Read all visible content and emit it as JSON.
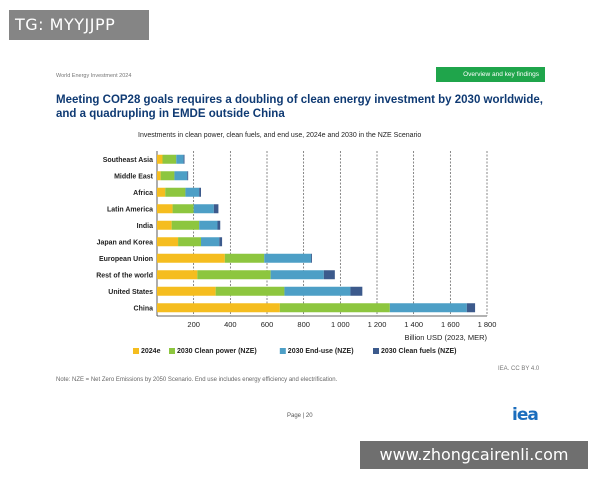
{
  "watermark_top": "TG: MYYJJPP",
  "watermark_bottom": "www.zhongcairenli.com",
  "report_name": "World Energy Investment 2024",
  "section_tag": "Overview and key findings",
  "headline": "Meeting COP28 goals requires a doubling of clean energy investment by 2030 worldwide, and a quadrupling in EMDE outside China",
  "note": "Note: NZE = Net Zero Emissions by 2050 Scenario. End use includes energy efficiency and electrification.",
  "source": "IEA. CC BY 4.0",
  "page_number": "Page | 20",
  "logo": "iea",
  "chart_data": {
    "type": "bar",
    "orientation": "horizontal",
    "stacked": true,
    "title": "Investments in clean power, clean fuels, and end use, 2024e and 2030 in the NZE Scenario",
    "xlabel": "Billion USD (2023, MER)",
    "xlim": [
      0,
      1800
    ],
    "xticks": [
      0,
      200,
      400,
      600,
      800,
      1000,
      1200,
      1400,
      1600,
      1800
    ],
    "xtick_labels": [
      "",
      "200",
      "400",
      "600",
      "800",
      "1 000",
      "1 200",
      "1 400",
      "1 600",
      "1 800"
    ],
    "grid": "vertical dashed",
    "legend_position": "bottom",
    "categories": [
      "Southeast Asia",
      "Middle East",
      "Africa",
      "Latin America",
      "India",
      "Japan and Korea",
      "European Union",
      "Rest of the world",
      "United States",
      "China"
    ],
    "series": [
      {
        "name": "2024e",
        "color": "#f5bd1f",
        "values": [
          30,
          20,
          45,
          85,
          80,
          115,
          370,
          220,
          320,
          670
        ]
      },
      {
        "name": "2030 Clean power (NZE)",
        "color": "#8dc63f",
        "values": [
          75,
          75,
          110,
          115,
          150,
          125,
          215,
          400,
          375,
          600
        ]
      },
      {
        "name": "2030 End-use (NZE)",
        "color": "#4d9fc6",
        "values": [
          40,
          70,
          75,
          110,
          100,
          100,
          255,
          290,
          360,
          420
        ]
      },
      {
        "name": "2030 Clean fuels (NZE)",
        "color": "#3c5a8c",
        "values": [
          5,
          5,
          10,
          25,
          15,
          15,
          5,
          60,
          65,
          45
        ]
      }
    ]
  }
}
